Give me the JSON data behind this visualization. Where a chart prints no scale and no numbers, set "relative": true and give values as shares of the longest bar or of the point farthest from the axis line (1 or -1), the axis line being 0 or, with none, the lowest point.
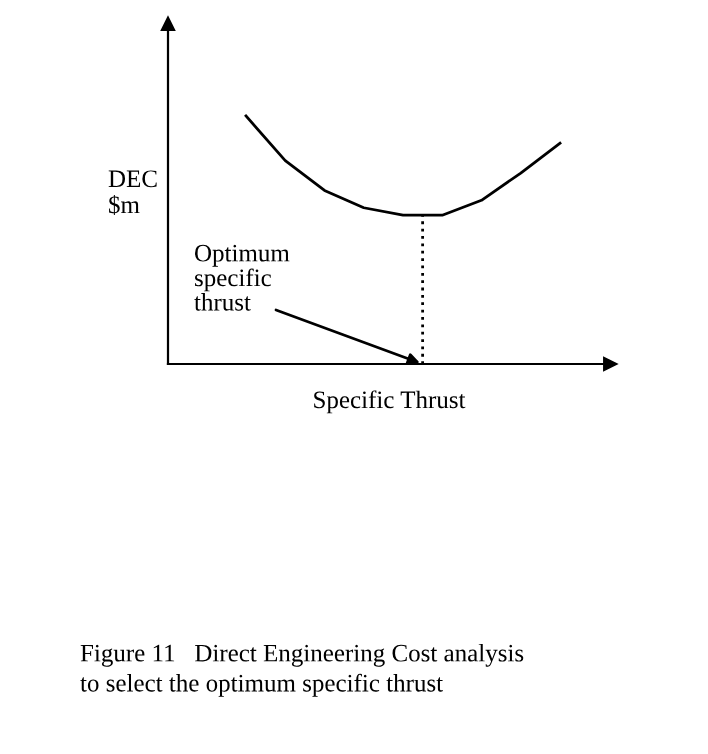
{
  "chart_data": {
    "type": "line",
    "relative": true,
    "xlabel": "Specific Thrust",
    "ylabel": "DEC\n$m",
    "categories": [
      null,
      null,
      null,
      null,
      null,
      null,
      null,
      null,
      null
    ],
    "series": [
      {
        "color": "#000000",
        "values": [
          1,
          0.82,
          0.7,
          0.63,
          0.6,
          0.6,
          0.66,
          0.77,
          0.89
        ]
      }
    ],
    "annotations": [
      "Optimum\nspecific\nthrust",
      "Figure 11   Direct Engineering Cost analysis\nto select the optimum specific thrust"
    ],
    "grid": false,
    "legend": false,
    "marker": "none",
    "line_style": "solid"
  }
}
